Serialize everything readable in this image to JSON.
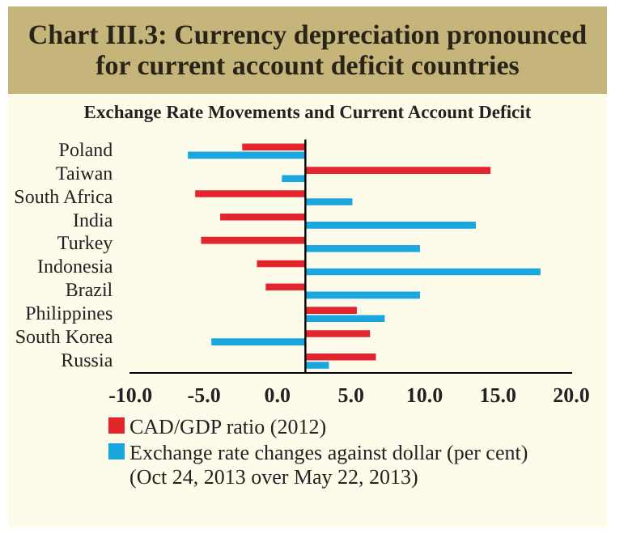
{
  "chart_data": {
    "type": "bar",
    "orientation": "horizontal",
    "title": "Chart III.3: Currency depreciation pronounced for current account deficit countries",
    "subtitle": "Exchange Rate Movements and Current Account Deficit",
    "categories": [
      "Poland",
      "Taiwan",
      "South Africa",
      "India",
      "Turkey",
      "Indonesia",
      "Brazil",
      "Philippines",
      "South Korea",
      "Russia"
    ],
    "series": [
      {
        "name": "CAD/GDP ratio (2012)",
        "color": "#e3262e",
        "base": [
          1.9,
          1.9,
          1.9,
          1.9,
          1.9,
          1.9,
          1.9,
          1.9,
          1.9,
          1.9
        ],
        "values": [
          -4.3,
          12.6,
          -7.5,
          -5.8,
          -7.1,
          -3.3,
          -2.7,
          3.5,
          4.4,
          4.8
        ]
      },
      {
        "name": "Exchange rate changes against dollar (per cent) (Oct 24, 2013 over May 22, 2013)",
        "color": "#1aa7e0",
        "base": [
          1.9,
          1.9,
          1.9,
          1.9,
          1.9,
          1.9,
          1.9,
          1.9,
          1.9,
          1.9
        ],
        "values": [
          -8.0,
          -1.6,
          3.2,
          11.6,
          7.8,
          16.0,
          7.8,
          5.4,
          -6.4,
          1.6
        ]
      }
    ],
    "xlim": [
      -10,
      20
    ],
    "xticks": [
      {
        "value": -10,
        "label": "-10.0"
      },
      {
        "value": -5,
        "label": "-5.0"
      },
      {
        "value": 0,
        "label": "0.0"
      },
      {
        "value": 5,
        "label": "5.0"
      },
      {
        "value": 10,
        "label": "10.0"
      },
      {
        "value": 15,
        "label": "15.0"
      },
      {
        "value": 20,
        "label": "20.0"
      }
    ],
    "ref_lines": [
      {
        "axis": "x",
        "value": 1.9,
        "color": "#000000"
      }
    ],
    "grid": false,
    "legend": "bottom"
  }
}
